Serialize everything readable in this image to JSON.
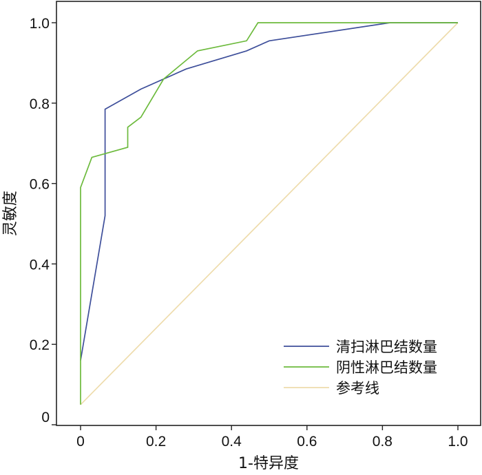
{
  "chart_data": {
    "type": "line",
    "title": "",
    "xlabel": "1-特异度",
    "ylabel": "灵敏度",
    "xlim": [
      0,
      1
    ],
    "ylim": [
      0,
      1
    ],
    "x_ticks": [
      {
        "value": 0,
        "label": "0"
      },
      {
        "value": 0.2,
        "label": "0.2"
      },
      {
        "value": 0.4,
        "label": "0.4"
      },
      {
        "value": 0.6,
        "label": "0.6"
      },
      {
        "value": 0.8,
        "label": "0.8"
      },
      {
        "value": 1.0,
        "label": "1.0"
      }
    ],
    "y_ticks": [
      {
        "value": 0,
        "label": "0"
      },
      {
        "value": 0.2,
        "label": "0.2"
      },
      {
        "value": 0.4,
        "label": "0.4"
      },
      {
        "value": 0.6,
        "label": "0.6"
      },
      {
        "value": 0.8,
        "label": "0.8"
      },
      {
        "value": 1.0,
        "label": "1.0"
      }
    ],
    "grid": false,
    "legend_position": "bottom-right",
    "series": [
      {
        "name": "清扫淋巴结数量",
        "color": "#3d4e9a",
        "points": [
          [
            0,
            0.16
          ],
          [
            0.065,
            0.52
          ],
          [
            0.065,
            0.785
          ],
          [
            0.16,
            0.835
          ],
          [
            0.28,
            0.885
          ],
          [
            0.44,
            0.93
          ],
          [
            0.5,
            0.955
          ],
          [
            0.82,
            1.0
          ],
          [
            1.0,
            1.0
          ]
        ]
      },
      {
        "name": "阴性淋巴结数量",
        "color": "#6cba3c",
        "points": [
          [
            0,
            0.05
          ],
          [
            0,
            0.59
          ],
          [
            0.03,
            0.665
          ],
          [
            0.125,
            0.69
          ],
          [
            0.125,
            0.74
          ],
          [
            0.16,
            0.765
          ],
          [
            0.22,
            0.86
          ],
          [
            0.31,
            0.93
          ],
          [
            0.44,
            0.955
          ],
          [
            0.47,
            1.0
          ],
          [
            1.0,
            1.0
          ]
        ]
      },
      {
        "name": "参考线",
        "color": "#eedcac",
        "points": [
          [
            0,
            0.05
          ],
          [
            1.0,
            1.0
          ]
        ]
      }
    ]
  }
}
